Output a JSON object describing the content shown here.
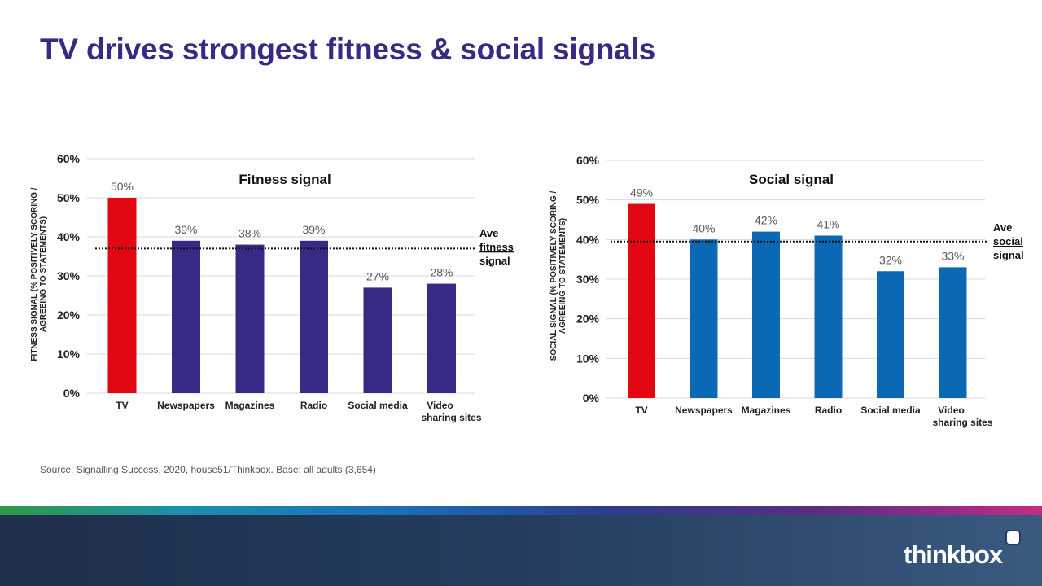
{
  "page": {
    "title": "TV drives strongest fitness & social signals",
    "source": "Source: Signalling Success, 2020, house51/Thinkbox. Base: all adults (3,654)",
    "logo": "thinkbox"
  },
  "chart_data": [
    {
      "type": "bar",
      "title": "Fitness signal",
      "ylabel": "FITNESS SIGNAL (% POSITIVELY SCORING / AGREEING TO STATEMENTS)",
      "categories": [
        "TV",
        "Newspapers",
        "Magazines",
        "Radio",
        "Social media",
        "Video sharing sites"
      ],
      "values": [
        50,
        39,
        38,
        39,
        27,
        28
      ],
      "value_labels": [
        "50%",
        "39%",
        "38%",
        "39%",
        "27%",
        "28%"
      ],
      "ylim": [
        0,
        60
      ],
      "yticks": [
        "0%",
        "10%",
        "20%",
        "30%",
        "40%",
        "50%",
        "60%"
      ],
      "grid": true,
      "average": 37,
      "average_label": [
        "Ave",
        "fitness",
        "signal"
      ],
      "colors": {
        "highlight": "#e30613",
        "bar": "#352b84"
      }
    },
    {
      "type": "bar",
      "title": "Social signal",
      "ylabel": "SOCIAL SIGNAL (% POSITIVELY SCORING / AGREEING TO STATEMENTS)",
      "categories": [
        "TV",
        "Newspapers",
        "Magazines",
        "Radio",
        "Social media",
        "Video sharing sites"
      ],
      "values": [
        49,
        40,
        42,
        41,
        32,
        33
      ],
      "value_labels": [
        "49%",
        "40%",
        "42%",
        "41%",
        "32%",
        "33%"
      ],
      "ylim": [
        0,
        60
      ],
      "yticks": [
        "0%",
        "10%",
        "20%",
        "30%",
        "40%",
        "50%",
        "60%"
      ],
      "grid": true,
      "average": 39.5,
      "average_label": [
        "Ave",
        "social",
        "signal"
      ],
      "colors": {
        "highlight": "#e30613",
        "bar": "#0a68b4"
      }
    }
  ]
}
